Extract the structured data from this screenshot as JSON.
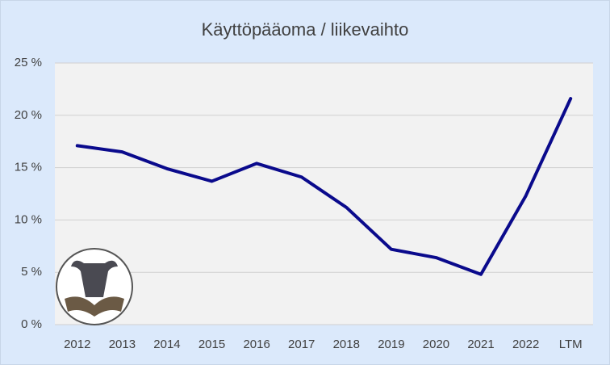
{
  "chart_data": {
    "type": "line",
    "title": "Käyttöpääoma / liikevaihto",
    "categories": [
      "2012",
      "2013",
      "2014",
      "2015",
      "2016",
      "2017",
      "2018",
      "2019",
      "2020",
      "2021",
      "2022",
      "LTM"
    ],
    "series": [
      {
        "color": "#0a0a8c",
        "values": [
          17.1,
          16.5,
          14.9,
          13.7,
          15.4,
          14.1,
          11.2,
          7.2,
          6.4,
          4.8,
          12.3,
          21.6
        ]
      }
    ],
    "ylim": [
      0,
      25
    ],
    "yticks": [
      {
        "value": 0,
        "label": "0 %"
      },
      {
        "value": 5,
        "label": "5 %"
      },
      {
        "value": 10,
        "label": "10 %"
      },
      {
        "value": 15,
        "label": "15 %"
      },
      {
        "value": 20,
        "label": "20 %"
      },
      {
        "value": 25,
        "label": "25 %"
      }
    ],
    "grid": true
  }
}
